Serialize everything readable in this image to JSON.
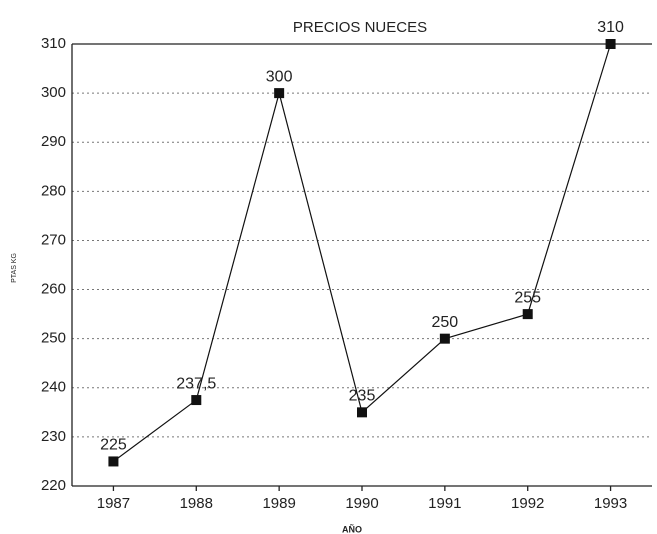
{
  "chart_data": {
    "type": "line",
    "title": "PRECIOS NUECES",
    "x_label": "AÑO",
    "y_label": "PTAS KG",
    "categories": [
      "1987",
      "1988",
      "1989",
      "1990",
      "1991",
      "1992",
      "1993"
    ],
    "values": [
      225,
      237.5,
      300,
      235,
      250,
      255,
      310
    ],
    "value_labels": [
      "225",
      "237,5",
      "300",
      "235",
      "250",
      "255",
      "310"
    ],
    "color": "#111111",
    "ylim": [
      220,
      310
    ],
    "yticks": [
      220,
      230,
      240,
      250,
      260,
      270,
      280,
      290,
      300,
      310
    ],
    "grid": true
  }
}
